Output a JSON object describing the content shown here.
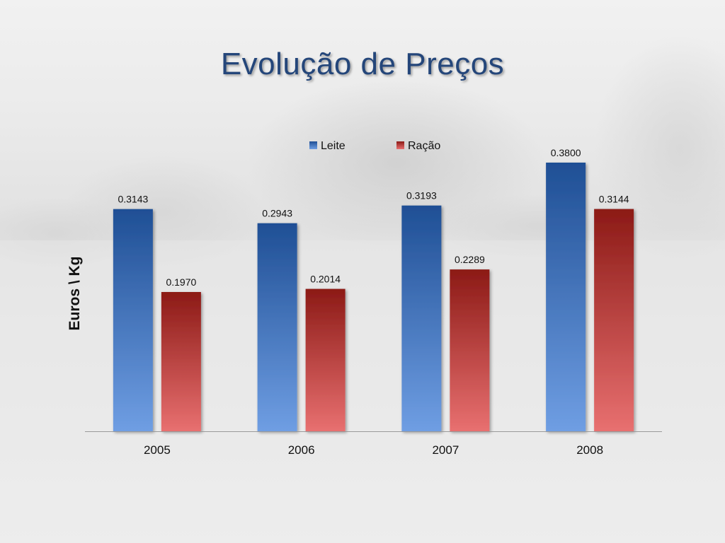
{
  "slide": {
    "title": "Evolução de Preços"
  },
  "colors": {
    "leite_top": "#1f4f95",
    "leite_bottom": "#6f9ee3",
    "racao_top": "#8c1a16",
    "racao_bottom": "#e87070",
    "title": "#24467a"
  },
  "chart_data": {
    "type": "bar",
    "title": "",
    "xlabel": "",
    "ylabel": "Euros \\ Kg",
    "categories": [
      "2005",
      "2006",
      "2007",
      "2008"
    ],
    "series": [
      {
        "name": "Leite",
        "values": [
          0.3143,
          0.2943,
          0.3193,
          0.38
        ],
        "labels": [
          "0.3143",
          "0.2943",
          "0.3193",
          "0.3800"
        ]
      },
      {
        "name": "Ração",
        "values": [
          0.197,
          0.2014,
          0.2289,
          0.3144
        ],
        "labels": [
          "0.1970",
          "0.2014",
          "0.2289",
          "0.3144"
        ]
      }
    ],
    "ylim": [
      0,
      0.4
    ],
    "legend": "top-center",
    "grid": false
  }
}
